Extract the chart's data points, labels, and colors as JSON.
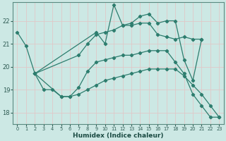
{
  "xlabel": "Humidex (Indice chaleur)",
  "xlim": [
    -0.5,
    23.5
  ],
  "ylim": [
    17.5,
    22.8
  ],
  "xticks": [
    0,
    1,
    2,
    3,
    4,
    5,
    6,
    7,
    8,
    9,
    10,
    11,
    12,
    13,
    14,
    15,
    16,
    17,
    18,
    19,
    20,
    21,
    22,
    23
  ],
  "yticks": [
    18,
    19,
    20,
    21,
    22
  ],
  "background_color": "#cce8e4",
  "grid_color": "#b8d8d4",
  "line_color": "#2d7d6e",
  "lines": [
    {
      "x": [
        0,
        1,
        2,
        9,
        10,
        11,
        12,
        13,
        14,
        15,
        16,
        17,
        18,
        19,
        20,
        21
      ],
      "y": [
        21.5,
        20.9,
        19.7,
        21.5,
        21.0,
        22.7,
        21.8,
        21.9,
        22.2,
        22.3,
        21.9,
        22.0,
        22.0,
        20.3,
        19.4,
        21.2
      ]
    },
    {
      "x": [
        2,
        7,
        8,
        9,
        10,
        11,
        12,
        13,
        14,
        15,
        16,
        17,
        18,
        19,
        20,
        21
      ],
      "y": [
        19.7,
        20.5,
        21.0,
        21.4,
        21.5,
        21.6,
        21.8,
        21.8,
        21.9,
        21.9,
        21.4,
        21.3,
        21.2,
        21.3,
        21.2,
        21.2
      ]
    },
    {
      "x": [
        2,
        5,
        6,
        7,
        8,
        9,
        10,
        11,
        12,
        13,
        14,
        15,
        16,
        17,
        18,
        19,
        20,
        21,
        22,
        23
      ],
      "y": [
        19.7,
        18.7,
        18.7,
        19.1,
        19.8,
        20.2,
        20.3,
        20.4,
        20.5,
        20.5,
        20.6,
        20.7,
        20.7,
        20.7,
        20.2,
        19.7,
        18.8,
        18.3,
        17.8,
        17.8
      ]
    },
    {
      "x": [
        2,
        3,
        4,
        5,
        6,
        7,
        8,
        9,
        10,
        11,
        12,
        13,
        14,
        15,
        16,
        17,
        18,
        19,
        20,
        21,
        22,
        23
      ],
      "y": [
        19.7,
        19.0,
        19.0,
        18.7,
        18.7,
        18.8,
        19.0,
        19.2,
        19.4,
        19.5,
        19.6,
        19.7,
        19.8,
        19.9,
        19.9,
        19.9,
        19.9,
        19.6,
        19.2,
        18.8,
        18.3,
        17.8
      ]
    }
  ]
}
